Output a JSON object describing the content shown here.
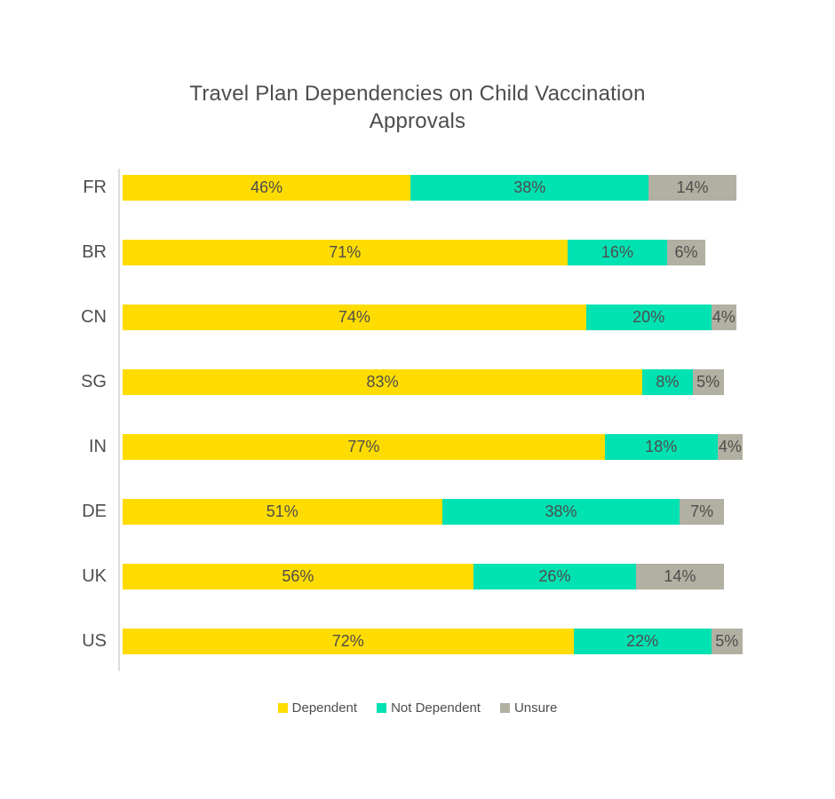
{
  "chart_data": {
    "type": "bar",
    "orientation": "horizontal",
    "stacked": true,
    "title": "Travel Plan Dependencies on Child Vaccination Approvals",
    "categories": [
      "FR",
      "BR",
      "CN",
      "SG",
      "IN",
      "DE",
      "UK",
      "US"
    ],
    "series": [
      {
        "name": "Dependent",
        "color": "#FFDC00",
        "values": [
          46,
          71,
          74,
          83,
          77,
          51,
          56,
          72
        ]
      },
      {
        "name": "Not Dependent",
        "color": "#00E2B2",
        "values": [
          38,
          16,
          20,
          8,
          18,
          38,
          26,
          22
        ]
      },
      {
        "name": "Unsure",
        "color": "#B1B0A2",
        "values": [
          14,
          6,
          4,
          5,
          4,
          7,
          14,
          5
        ]
      }
    ],
    "value_suffix": "%",
    "xlim": [
      0,
      100
    ],
    "grid": false,
    "legend_position": "bottom",
    "text_color": "#4D4D4D",
    "axis_line_color": "#DCDCDC",
    "background_color": "#FFFFFF"
  }
}
